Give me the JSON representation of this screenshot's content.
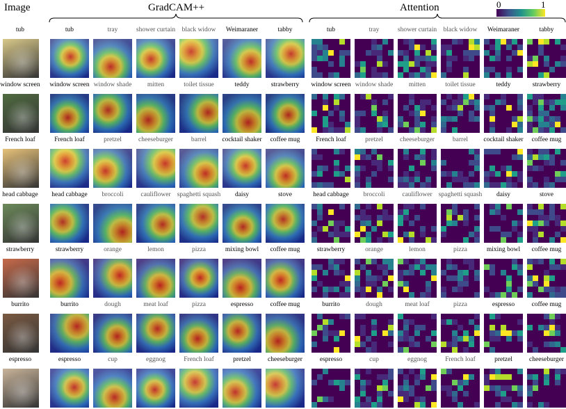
{
  "headers": {
    "image": "Image",
    "gradcam": "GradCAM++",
    "attention": "Attention"
  },
  "colorbar": {
    "min": "0",
    "max": "1"
  },
  "rows": [
    {
      "image_label": "tub",
      "photo_color": "#d9c98a",
      "labels": [
        "tub",
        "tray",
        "shower curtain",
        "black widow",
        "Weimaraner",
        "tabby"
      ]
    },
    {
      "image_label": "window screen",
      "photo_color": "#4f6b3f",
      "labels": [
        "window screen",
        "window shade",
        "mitten",
        "toilet tissue",
        "teddy",
        "strawberry"
      ]
    },
    {
      "image_label": "French loaf",
      "photo_color": "#e7c27a",
      "labels": [
        "French loaf",
        "pretzel",
        "cheeseburger",
        "barrel",
        "cocktail shaker",
        "coffee mug"
      ]
    },
    {
      "image_label": "head cabbage",
      "photo_color": "#6c8a5a",
      "labels": [
        "head cabbage",
        "broccoli",
        "cauliflower",
        "spaghetti squash",
        "daisy",
        "stove"
      ]
    },
    {
      "image_label": "strawberry",
      "photo_color": "#c86a4a",
      "labels": [
        "strawberry",
        "orange",
        "lemon",
        "pizza",
        "mixing bowl",
        "coffee mug"
      ]
    },
    {
      "image_label": "burrito",
      "photo_color": "#7a5a42",
      "labels": [
        "burrito",
        "dough",
        "meat loaf",
        "pizza",
        "espresso",
        "coffee mug"
      ]
    },
    {
      "image_label": "espresso",
      "photo_color": "#c9b49a",
      "labels": [
        "espresso",
        "cup",
        "eggnog",
        "French loaf",
        "pretzel",
        "cheeseburger"
      ]
    }
  ],
  "palette": {
    "viridis_dark": "#440154",
    "viridis_mid": "#21918c",
    "viridis_bright": "#fde725",
    "jet_blue": "#1f3dbf",
    "jet_red": "#e0231c",
    "jet_yellow": "#f5d33a"
  }
}
